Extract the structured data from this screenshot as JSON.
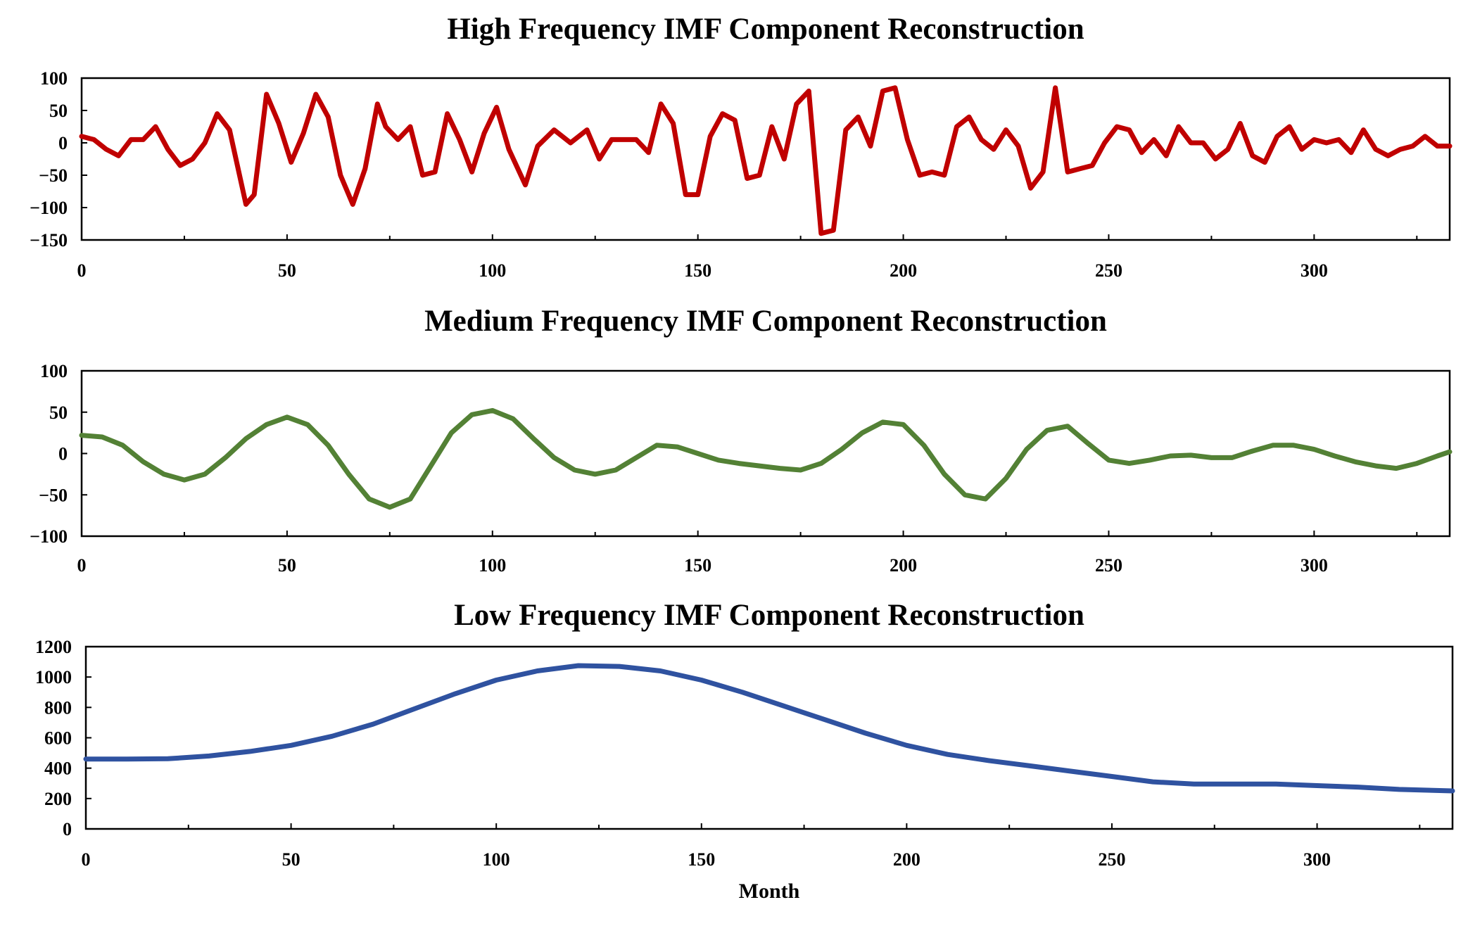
{
  "figure_title": "IMF Component Reconstruction",
  "chart_data": [
    {
      "type": "line",
      "title": "High Frequency IMF Component Reconstruction",
      "xlabel": "",
      "ylabel": "",
      "xlim": [
        0,
        333
      ],
      "ylim": [
        -150,
        100
      ],
      "xticks": [
        0,
        50,
        100,
        150,
        200,
        250,
        300
      ],
      "xtick_labels": [
        "0",
        "50",
        "100",
        "150",
        "200",
        "250",
        "300"
      ],
      "yticks": [
        100,
        50,
        0,
        -50,
        -100,
        -150
      ],
      "ytick_labels": [
        "100",
        "50",
        "0",
        "−50",
        "−100",
        "−150"
      ],
      "minor_xticks": [
        25,
        75,
        125,
        175,
        225,
        275,
        325
      ],
      "color": "#c00000",
      "series": [
        {
          "name": "High Frequency IMF",
          "x": [
            0,
            3,
            6,
            9,
            12,
            15,
            18,
            21,
            24,
            27,
            30,
            33,
            36,
            40,
            42,
            45,
            48,
            51,
            54,
            57,
            60,
            63,
            66,
            69,
            72,
            74,
            77,
            80,
            83,
            86,
            89,
            92,
            95,
            98,
            101,
            104,
            108,
            111,
            115,
            119,
            123,
            126,
            129,
            132,
            135,
            138,
            141,
            144,
            147,
            150,
            153,
            156,
            159,
            162,
            165,
            168,
            171,
            174,
            177,
            180,
            183,
            186,
            189,
            192,
            195,
            198,
            201,
            204,
            207,
            210,
            213,
            216,
            219,
            222,
            225,
            228,
            231,
            234,
            237,
            240,
            243,
            246,
            249,
            252,
            255,
            258,
            261,
            264,
            267,
            270,
            273,
            276,
            279,
            282,
            285,
            288,
            291,
            294,
            297,
            300,
            303,
            306,
            309,
            312,
            315,
            318,
            321,
            324,
            327,
            330,
            333
          ],
          "values": [
            10,
            5,
            -10,
            -20,
            5,
            5,
            25,
            -10,
            -35,
            -25,
            0,
            45,
            20,
            -95,
            -80,
            75,
            30,
            -30,
            15,
            75,
            40,
            -50,
            -95,
            -40,
            60,
            25,
            5,
            25,
            -50,
            -45,
            45,
            5,
            -45,
            15,
            55,
            -10,
            -65,
            -5,
            20,
            0,
            20,
            -25,
            5,
            5,
            5,
            -15,
            60,
            30,
            -80,
            -80,
            10,
            45,
            35,
            -55,
            -50,
            25,
            -25,
            60,
            80,
            -140,
            -135,
            20,
            40,
            -5,
            80,
            85,
            5,
            -50,
            -45,
            -50,
            25,
            40,
            5,
            -10,
            20,
            -5,
            -70,
            -45,
            85,
            -45,
            -40,
            -35,
            0,
            25,
            20,
            -15,
            5,
            -20,
            25,
            0,
            0,
            -25,
            -10,
            30,
            -20,
            -30,
            10,
            25,
            -10,
            5,
            0,
            5,
            -15,
            20,
            -10,
            -20,
            -10,
            -5,
            10,
            -5,
            -5
          ]
        }
      ]
    },
    {
      "type": "line",
      "title": "Medium Frequency IMF Component Reconstruction",
      "xlabel": "",
      "ylabel": "",
      "xlim": [
        0,
        333
      ],
      "ylim": [
        -100,
        100
      ],
      "xticks": [
        0,
        50,
        100,
        150,
        200,
        250,
        300
      ],
      "xtick_labels": [
        "0",
        "50",
        "100",
        "150",
        "200",
        "250",
        "300"
      ],
      "yticks": [
        100,
        50,
        0,
        -50,
        -100
      ],
      "ytick_labels": [
        "100",
        "50",
        "0",
        "−50",
        "−100"
      ],
      "minor_xticks": [
        25,
        75,
        125,
        175,
        225,
        275,
        325
      ],
      "color": "#538135",
      "series": [
        {
          "name": "Medium Frequency IMF",
          "x": [
            0,
            5,
            10,
            15,
            20,
            25,
            30,
            35,
            40,
            45,
            50,
            55,
            60,
            65,
            70,
            75,
            80,
            85,
            90,
            95,
            100,
            105,
            110,
            115,
            120,
            125,
            130,
            135,
            140,
            145,
            150,
            155,
            160,
            165,
            170,
            175,
            180,
            185,
            190,
            195,
            200,
            205,
            210,
            215,
            220,
            225,
            230,
            235,
            240,
            245,
            250,
            255,
            260,
            265,
            270,
            275,
            280,
            285,
            290,
            295,
            300,
            305,
            310,
            315,
            320,
            325,
            330,
            333
          ],
          "values": [
            22,
            20,
            10,
            -10,
            -25,
            -32,
            -25,
            -5,
            18,
            35,
            44,
            35,
            10,
            -25,
            -55,
            -65,
            -55,
            -15,
            25,
            47,
            52,
            42,
            18,
            -5,
            -20,
            -25,
            -20,
            -5,
            10,
            8,
            0,
            -8,
            -12,
            -15,
            -18,
            -20,
            -12,
            5,
            25,
            38,
            35,
            10,
            -25,
            -50,
            -55,
            -30,
            5,
            28,
            33,
            12,
            -8,
            -12,
            -8,
            -3,
            -2,
            -5,
            -5,
            3,
            10,
            10,
            5,
            -3,
            -10,
            -15,
            -18,
            -12,
            -3,
            2
          ]
        }
      ]
    },
    {
      "type": "line",
      "title": "Low Frequency IMF Component Reconstruction",
      "xlabel": "Month",
      "ylabel": "",
      "xlim": [
        0,
        333
      ],
      "ylim": [
        0,
        1200
      ],
      "xticks": [
        0,
        50,
        100,
        150,
        200,
        250,
        300
      ],
      "xtick_labels": [
        "0",
        "50",
        "100",
        "150",
        "200",
        "250",
        "300"
      ],
      "yticks": [
        1200,
        1000,
        800,
        600,
        400,
        200,
        0
      ],
      "ytick_labels": [
        "1200",
        "1000",
        "800",
        "600",
        "400",
        "200",
        "0"
      ],
      "minor_xticks": [
        25,
        75,
        125,
        175,
        225,
        275,
        325
      ],
      "color": "#2f52a0",
      "series": [
        {
          "name": "Low Frequency IMF",
          "x": [
            0,
            10,
            20,
            30,
            40,
            50,
            60,
            70,
            80,
            90,
            100,
            110,
            120,
            130,
            140,
            150,
            160,
            170,
            180,
            190,
            200,
            210,
            220,
            230,
            240,
            250,
            260,
            270,
            280,
            290,
            300,
            310,
            320,
            333
          ],
          "values": [
            460,
            460,
            462,
            480,
            510,
            550,
            610,
            690,
            790,
            890,
            980,
            1040,
            1075,
            1070,
            1040,
            980,
            900,
            810,
            720,
            630,
            550,
            490,
            450,
            415,
            380,
            345,
            310,
            295,
            295,
            295,
            285,
            275,
            260,
            250
          ]
        }
      ]
    }
  ]
}
